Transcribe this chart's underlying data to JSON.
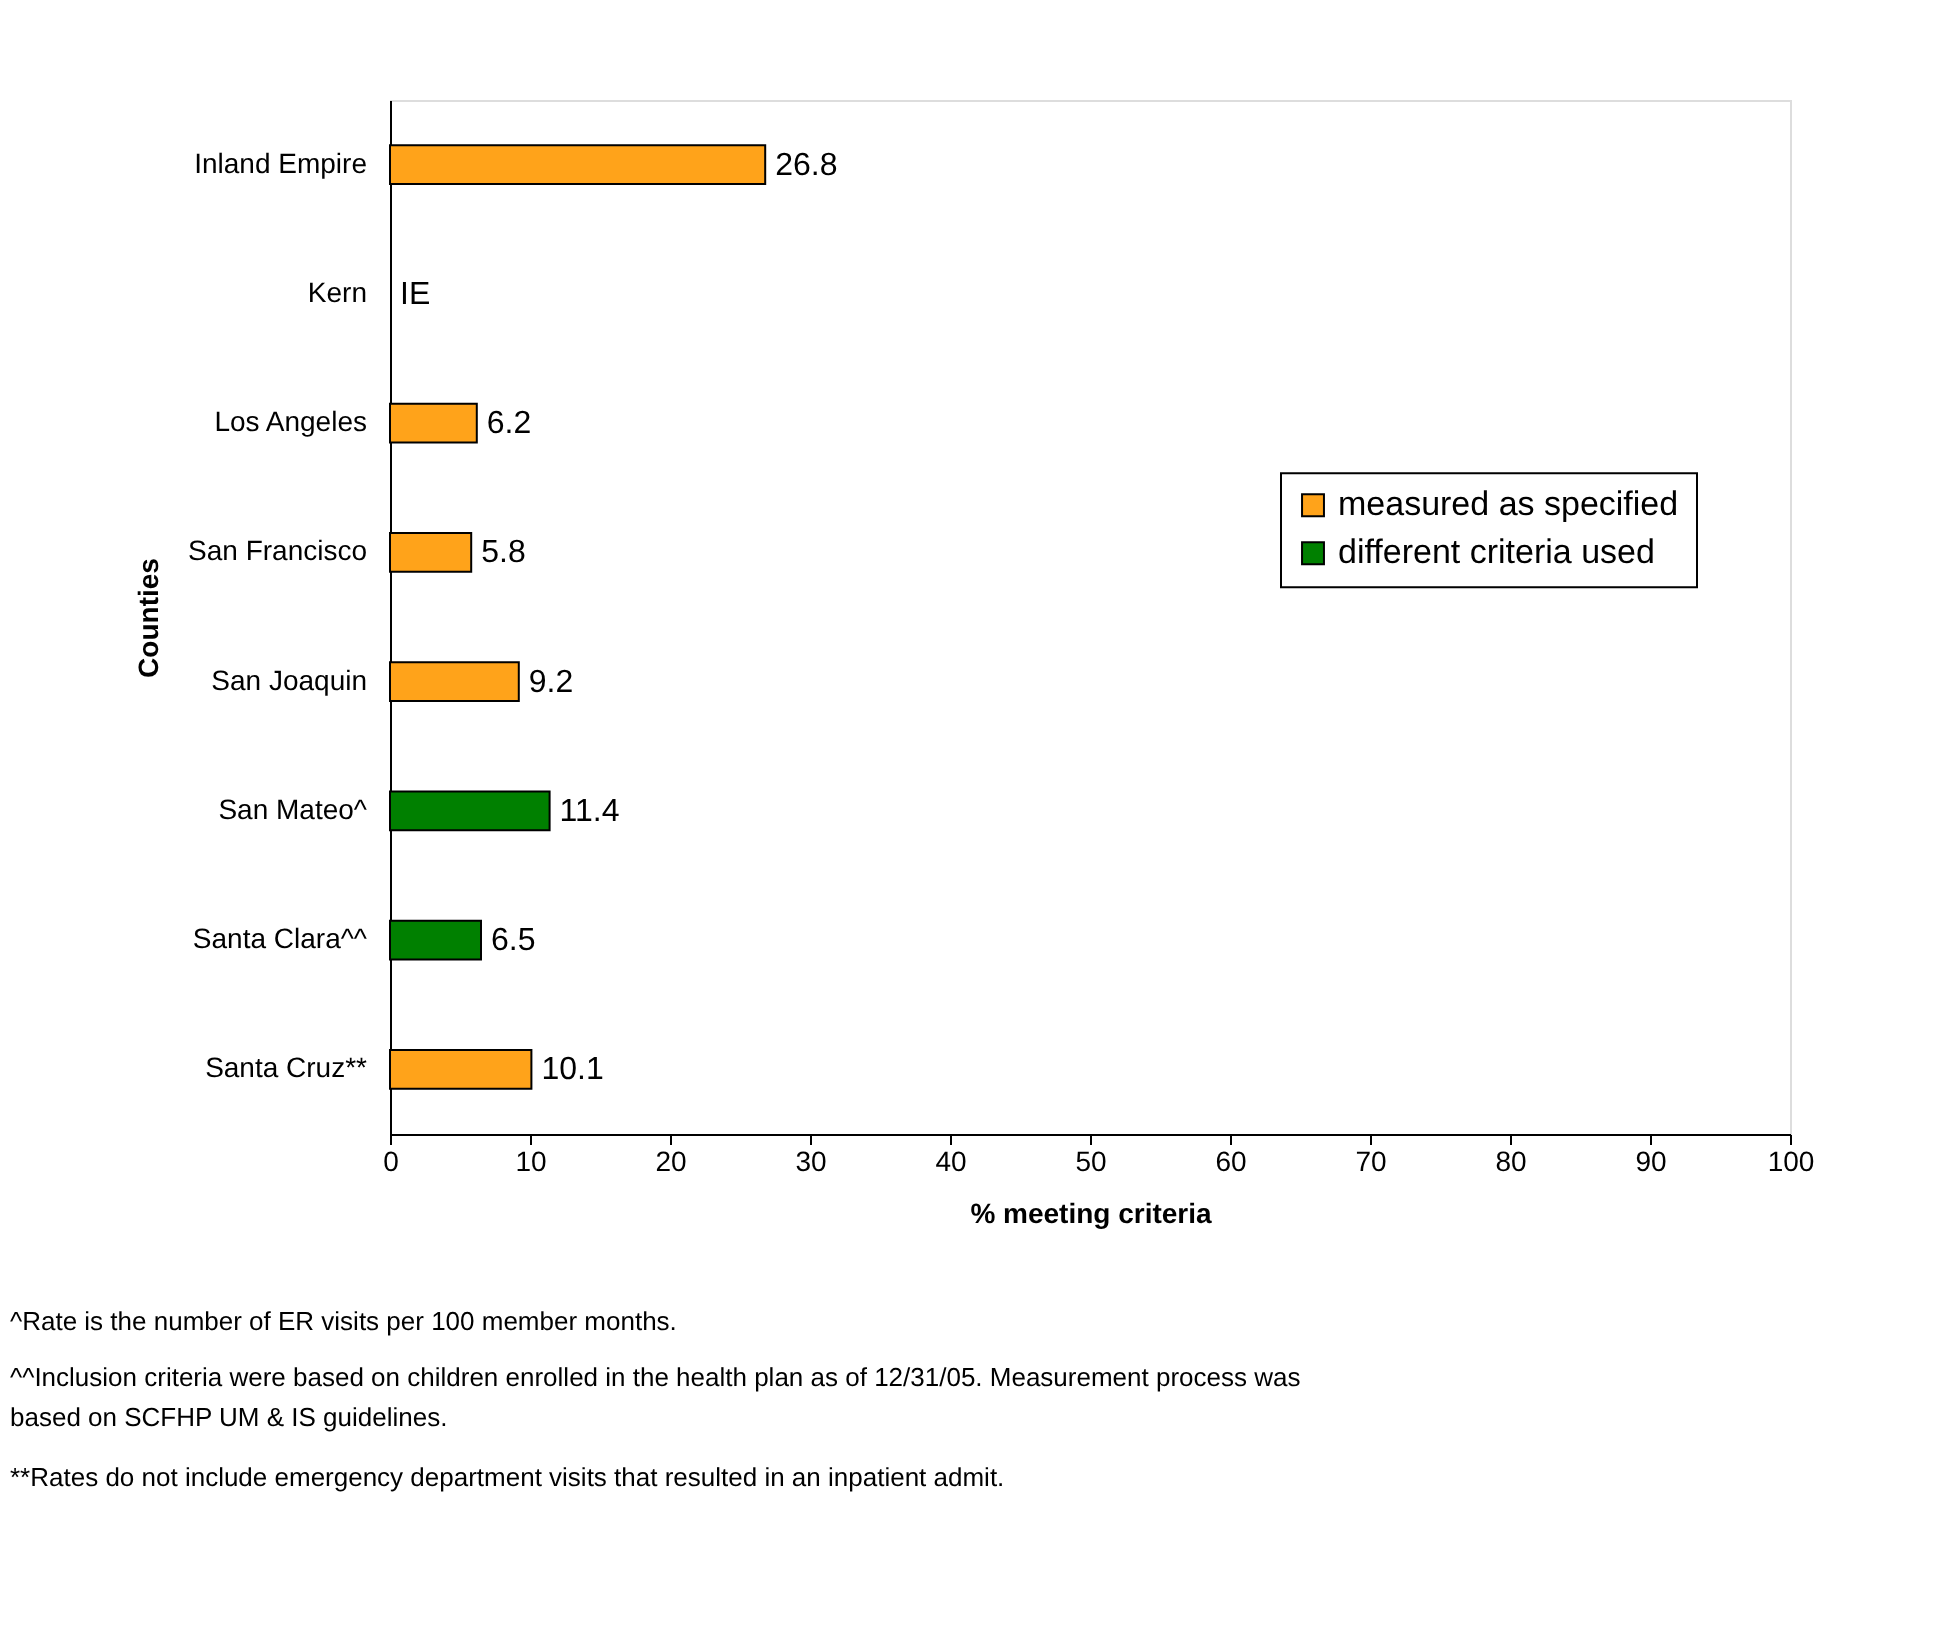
{
  "chart_data": {
    "type": "bar",
    "orientation": "horizontal",
    "xlabel": "% meeting criteria",
    "ylabel": "Counties",
    "categories": [
      "Inland Empire",
      "Kern",
      "Los Angeles",
      "San Francisco",
      "San Joaquin",
      "San Mateo^",
      "Santa Clara^^",
      "Santa Cruz**"
    ],
    "series": [
      {
        "name": "measured as specified",
        "color": "#ffa31a",
        "values": [
          26.8,
          null,
          6.2,
          5.8,
          9.2,
          null,
          null,
          10.1
        ],
        "value_labels": [
          "26.8",
          "IE",
          "6.2",
          "5.8",
          "9.2",
          null,
          null,
          "10.1"
        ]
      },
      {
        "name": "different criteria used",
        "color": "#008000",
        "values": [
          null,
          null,
          null,
          null,
          null,
          11.4,
          6.5,
          null
        ],
        "value_labels": [
          null,
          null,
          null,
          null,
          null,
          "11.4",
          "6.5",
          null
        ]
      }
    ],
    "xlim": [
      0,
      100
    ],
    "xticks": [
      0,
      10,
      20,
      30,
      40,
      50,
      60,
      70,
      80,
      90,
      100
    ],
    "grid": false,
    "legend": "right",
    "annotations": [
      "^Rate is the number of ER visits per 100 member months.",
      "^^Inclusion criteria were based on children enrolled in the health plan as of 12/31/05.  Measurement process was based on SCFHP UM & IS guidelines.",
      "**Rates do not include emergency department visits that resulted in an inpatient admit."
    ]
  }
}
